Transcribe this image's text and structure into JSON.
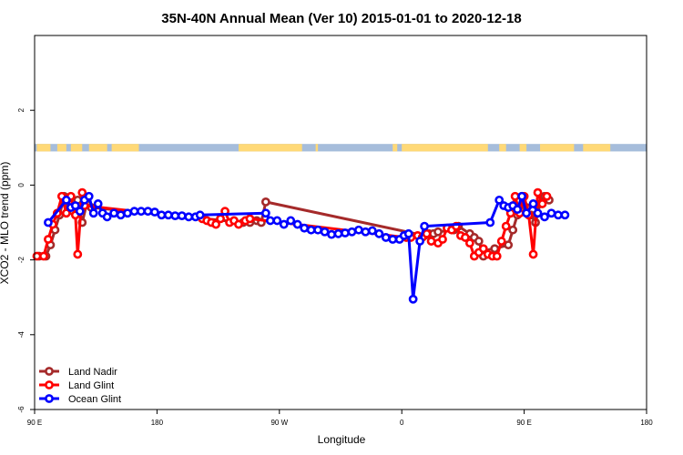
{
  "chart_data": {
    "type": "line",
    "title": "35N-40N Annual Mean (Ver 10)   2015-01-01 to 2020-12-18",
    "xlabel": "Longitude",
    "ylabel": "XCO2 - MLO trend (ppm)",
    "xlim": [
      -90,
      180
    ],
    "ylim": [
      -6,
      4
    ],
    "grid": false,
    "legend_position": "bottom-left",
    "x_ticks": [
      {
        "value": -90,
        "label": "90 E"
      },
      {
        "value": -36,
        "label": "180"
      },
      {
        "value": 18,
        "label": "90 W"
      },
      {
        "value": 72,
        "label": "0"
      },
      {
        "value": 126,
        "label": "90 E"
      },
      {
        "value": 180,
        "label": "180"
      }
    ],
    "y_ticks": [
      {
        "value": 2,
        "label": "2"
      },
      {
        "value": 0,
        "label": "0"
      },
      {
        "value": -2,
        "label": "-2"
      },
      {
        "value": -4,
        "label": "-4"
      },
      {
        "value": -6,
        "label": "-6"
      }
    ],
    "land_ocean_band": {
      "y_range": [
        0.9,
        1.1
      ],
      "land_color": "#ffd977",
      "ocean_color": "#a6bddb",
      "land_segments": [
        [
          -89,
          -83
        ],
        [
          -80,
          -76
        ],
        [
          -74,
          -69
        ],
        [
          -66,
          -58
        ],
        [
          -56,
          -44
        ],
        [
          0,
          28
        ],
        [
          34,
          35
        ],
        [
          68,
          70
        ],
        [
          72,
          110
        ],
        [
          115,
          118
        ],
        [
          124,
          127
        ],
        [
          133,
          148
        ],
        [
          152,
          164
        ]
      ]
    },
    "series": [
      {
        "name": "Land Nadir",
        "color": "#a52a2a",
        "points": [
          [
            -88,
            -1.9
          ],
          [
            -85,
            -1.9
          ],
          [
            -83,
            -1.6
          ],
          [
            -81,
            -1.2
          ],
          [
            -79,
            -0.8
          ],
          [
            -77,
            -0.3
          ],
          [
            -75,
            -0.6
          ],
          [
            -73,
            -0.7
          ],
          [
            -71,
            -0.4
          ],
          [
            -69,
            -1.0
          ],
          [
            -67,
            -0.5
          ],
          [
            -65,
            -0.6
          ],
          [
            2,
            -1.0
          ],
          [
            5,
            -1.0
          ],
          [
            8,
            -0.95
          ],
          [
            10,
            -1.0
          ],
          [
            12,
            -0.45
          ],
          [
            82,
            -1.35
          ],
          [
            84,
            -1.3
          ],
          [
            86,
            -1.3
          ],
          [
            88,
            -1.25
          ],
          [
            95,
            -1.2
          ],
          [
            97,
            -1.1
          ],
          [
            102,
            -1.3
          ],
          [
            104,
            -1.4
          ],
          [
            106,
            -1.5
          ],
          [
            108,
            -1.9
          ],
          [
            111,
            -1.8
          ],
          [
            113,
            -1.7
          ],
          [
            119,
            -1.6
          ],
          [
            121,
            -1.2
          ],
          [
            123,
            -0.8
          ],
          [
            125,
            -0.3
          ],
          [
            127,
            -0.6
          ],
          [
            129,
            -0.8
          ],
          [
            131,
            -1.0
          ],
          [
            133,
            -0.5
          ],
          [
            135,
            -0.3
          ],
          [
            137,
            -0.4
          ]
        ]
      },
      {
        "name": "Land Glint",
        "color": "#ff0000",
        "points": [
          [
            -89,
            -1.9
          ],
          [
            -86,
            -1.9
          ],
          [
            -84,
            -1.45
          ],
          [
            -82,
            -1.05
          ],
          [
            -80,
            -0.75
          ],
          [
            -78,
            -0.3
          ],
          [
            -76,
            -0.75
          ],
          [
            -74,
            -0.3
          ],
          [
            -72,
            -0.8
          ],
          [
            -71,
            -1.85
          ],
          [
            -69,
            -0.2
          ],
          [
            -68,
            -0.55
          ],
          [
            -16,
            -0.9
          ],
          [
            -14,
            -0.95
          ],
          [
            -12,
            -1.0
          ],
          [
            -10,
            -1.05
          ],
          [
            -8,
            -0.9
          ],
          [
            -6,
            -0.7
          ],
          [
            -4,
            -1.0
          ],
          [
            -2,
            -0.95
          ],
          [
            0,
            -1.05
          ],
          [
            3,
            -0.95
          ],
          [
            5,
            -0.9
          ],
          [
            74,
            -1.4
          ],
          [
            76,
            -1.4
          ],
          [
            79,
            -1.35
          ],
          [
            81,
            -1.4
          ],
          [
            83,
            -1.3
          ],
          [
            85,
            -1.5
          ],
          [
            88,
            -1.55
          ],
          [
            90,
            -1.45
          ],
          [
            92,
            -1.15
          ],
          [
            94,
            -1.2
          ],
          [
            96,
            -1.1
          ],
          [
            98,
            -1.35
          ],
          [
            100,
            -1.4
          ],
          [
            102,
            -1.55
          ],
          [
            104,
            -1.9
          ],
          [
            106,
            -1.8
          ],
          [
            108,
            -1.7
          ],
          [
            110,
            -1.85
          ],
          [
            112,
            -1.9
          ],
          [
            114,
            -1.9
          ],
          [
            116,
            -1.5
          ],
          [
            118,
            -1.1
          ],
          [
            120,
            -0.75
          ],
          [
            122,
            -0.3
          ],
          [
            124,
            -0.75
          ],
          [
            126,
            -0.3
          ],
          [
            128,
            -0.8
          ],
          [
            130,
            -1.85
          ],
          [
            132,
            -0.2
          ],
          [
            134,
            -0.5
          ],
          [
            136,
            -0.3
          ]
        ]
      },
      {
        "name": "Ocean Glint",
        "color": "#0000ff",
        "points": [
          [
            -84,
            -1.0
          ],
          [
            -76,
            -0.4
          ],
          [
            -74,
            -0.6
          ],
          [
            -72,
            -0.55
          ],
          [
            -70,
            -0.7
          ],
          [
            -68,
            -0.4
          ],
          [
            -66,
            -0.3
          ],
          [
            -64,
            -0.75
          ],
          [
            -62,
            -0.5
          ],
          [
            -60,
            -0.75
          ],
          [
            -58,
            -0.85
          ],
          [
            -55,
            -0.75
          ],
          [
            -52,
            -0.8
          ],
          [
            -49,
            -0.75
          ],
          [
            -46,
            -0.7
          ],
          [
            -43,
            -0.7
          ],
          [
            -40,
            -0.7
          ],
          [
            -37,
            -0.72
          ],
          [
            -34,
            -0.8
          ],
          [
            -31,
            -0.8
          ],
          [
            -28,
            -0.82
          ],
          [
            -25,
            -0.82
          ],
          [
            -22,
            -0.85
          ],
          [
            -19,
            -0.85
          ],
          [
            -17,
            -0.8
          ],
          [
            12,
            -0.75
          ],
          [
            14,
            -0.95
          ],
          [
            17,
            -0.95
          ],
          [
            20,
            -1.05
          ],
          [
            23,
            -0.95
          ],
          [
            26,
            -1.05
          ],
          [
            29,
            -1.15
          ],
          [
            32,
            -1.2
          ],
          [
            35,
            -1.2
          ],
          [
            38,
            -1.25
          ],
          [
            41,
            -1.32
          ],
          [
            44,
            -1.3
          ],
          [
            47,
            -1.28
          ],
          [
            50,
            -1.25
          ],
          [
            53,
            -1.2
          ],
          [
            56,
            -1.25
          ],
          [
            59,
            -1.22
          ],
          [
            62,
            -1.3
          ],
          [
            65,
            -1.4
          ],
          [
            68,
            -1.45
          ],
          [
            71,
            -1.45
          ],
          [
            73,
            -1.35
          ],
          [
            75,
            -1.3
          ],
          [
            77,
            -3.05
          ],
          [
            80,
            -1.5
          ],
          [
            82,
            -1.1
          ],
          [
            111,
            -1.0
          ],
          [
            115,
            -0.4
          ],
          [
            117,
            -0.55
          ],
          [
            119,
            -0.6
          ],
          [
            121,
            -0.55
          ],
          [
            123,
            -0.65
          ],
          [
            125,
            -0.3
          ],
          [
            127,
            -0.75
          ],
          [
            130,
            -0.5
          ],
          [
            132,
            -0.75
          ],
          [
            135,
            -0.85
          ],
          [
            138,
            -0.75
          ],
          [
            141,
            -0.8
          ],
          [
            144,
            -0.8
          ]
        ]
      }
    ]
  }
}
